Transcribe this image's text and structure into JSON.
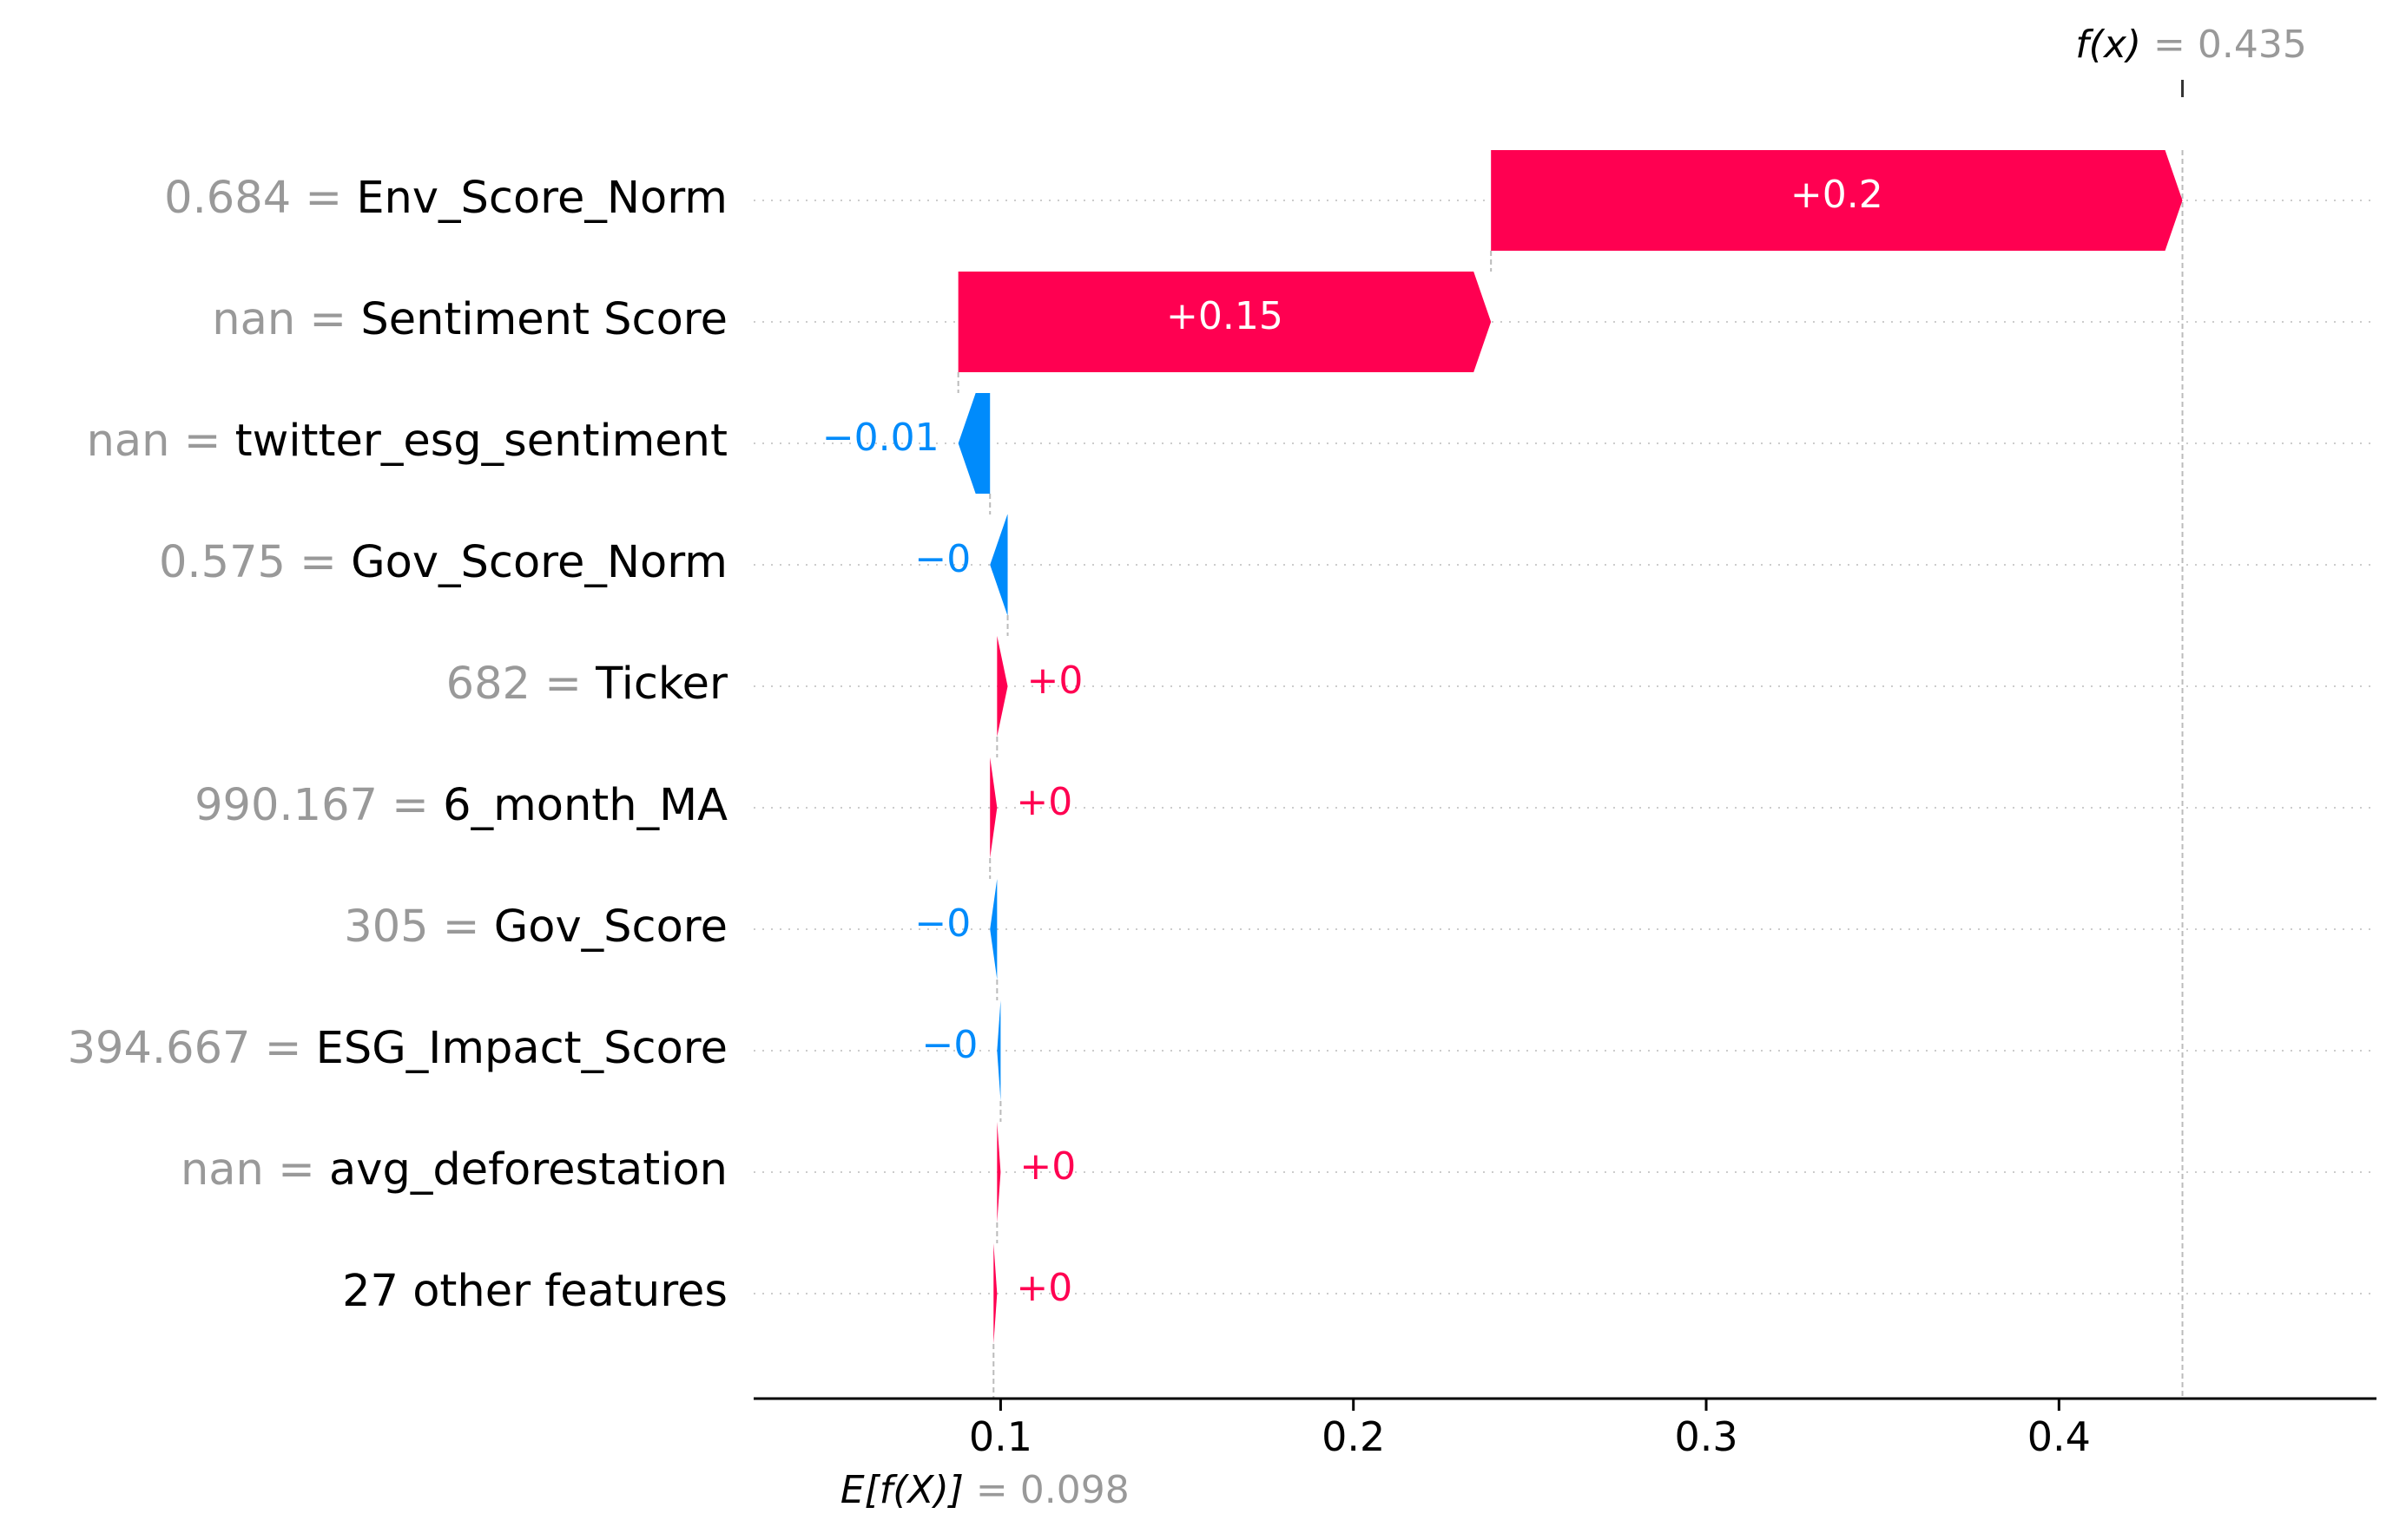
{
  "chart_data": {
    "type": "waterfall",
    "base_value": 0.098,
    "output_value": 0.435,
    "base_label": {
      "prefix": "E[f(X)]",
      "equals": " = ",
      "value": "0.098"
    },
    "output_label": {
      "prefix": "f(x)",
      "equals": " = ",
      "value": "0.435"
    },
    "xlim": [
      0.03,
      0.49
    ],
    "xticks": [
      0.1,
      0.2,
      0.3,
      0.4
    ],
    "xtick_labels": [
      "0.1",
      "0.2",
      "0.3",
      "0.4"
    ],
    "features": [
      {
        "value": "0.684",
        "name": "Env_Score_Norm",
        "contribution": 0.196,
        "label": "+0.2"
      },
      {
        "value": "nan",
        "name": "Sentiment Score",
        "contribution": 0.151,
        "label": "+0.15"
      },
      {
        "value": "nan",
        "name": "twitter_esg_sentiment",
        "contribution": -0.009,
        "label": "−0.01"
      },
      {
        "value": "0.575",
        "name": "Gov_Score_Norm",
        "contribution": -0.005,
        "label": "−0"
      },
      {
        "value": "682",
        "name": "Ticker",
        "contribution": 0.003,
        "label": "+0"
      },
      {
        "value": "990.167",
        "name": "6_month_MA",
        "contribution": 0.002,
        "label": "+0"
      },
      {
        "value": "305",
        "name": "Gov_Score",
        "contribution": -0.002,
        "label": "−0"
      },
      {
        "value": "394.667",
        "name": "ESG_Impact_Score",
        "contribution": -0.001,
        "label": "−0"
      },
      {
        "value": "nan",
        "name": "avg_deforestation",
        "contribution": 0.001,
        "label": "+0"
      },
      {
        "value": "",
        "name": "27 other features",
        "contribution": 0.001,
        "label": "+0"
      }
    ],
    "colors": {
      "positive": "#ff0051",
      "negative": "#008bfb",
      "muted": "#999999"
    },
    "grid": "dotted-horizontal"
  }
}
